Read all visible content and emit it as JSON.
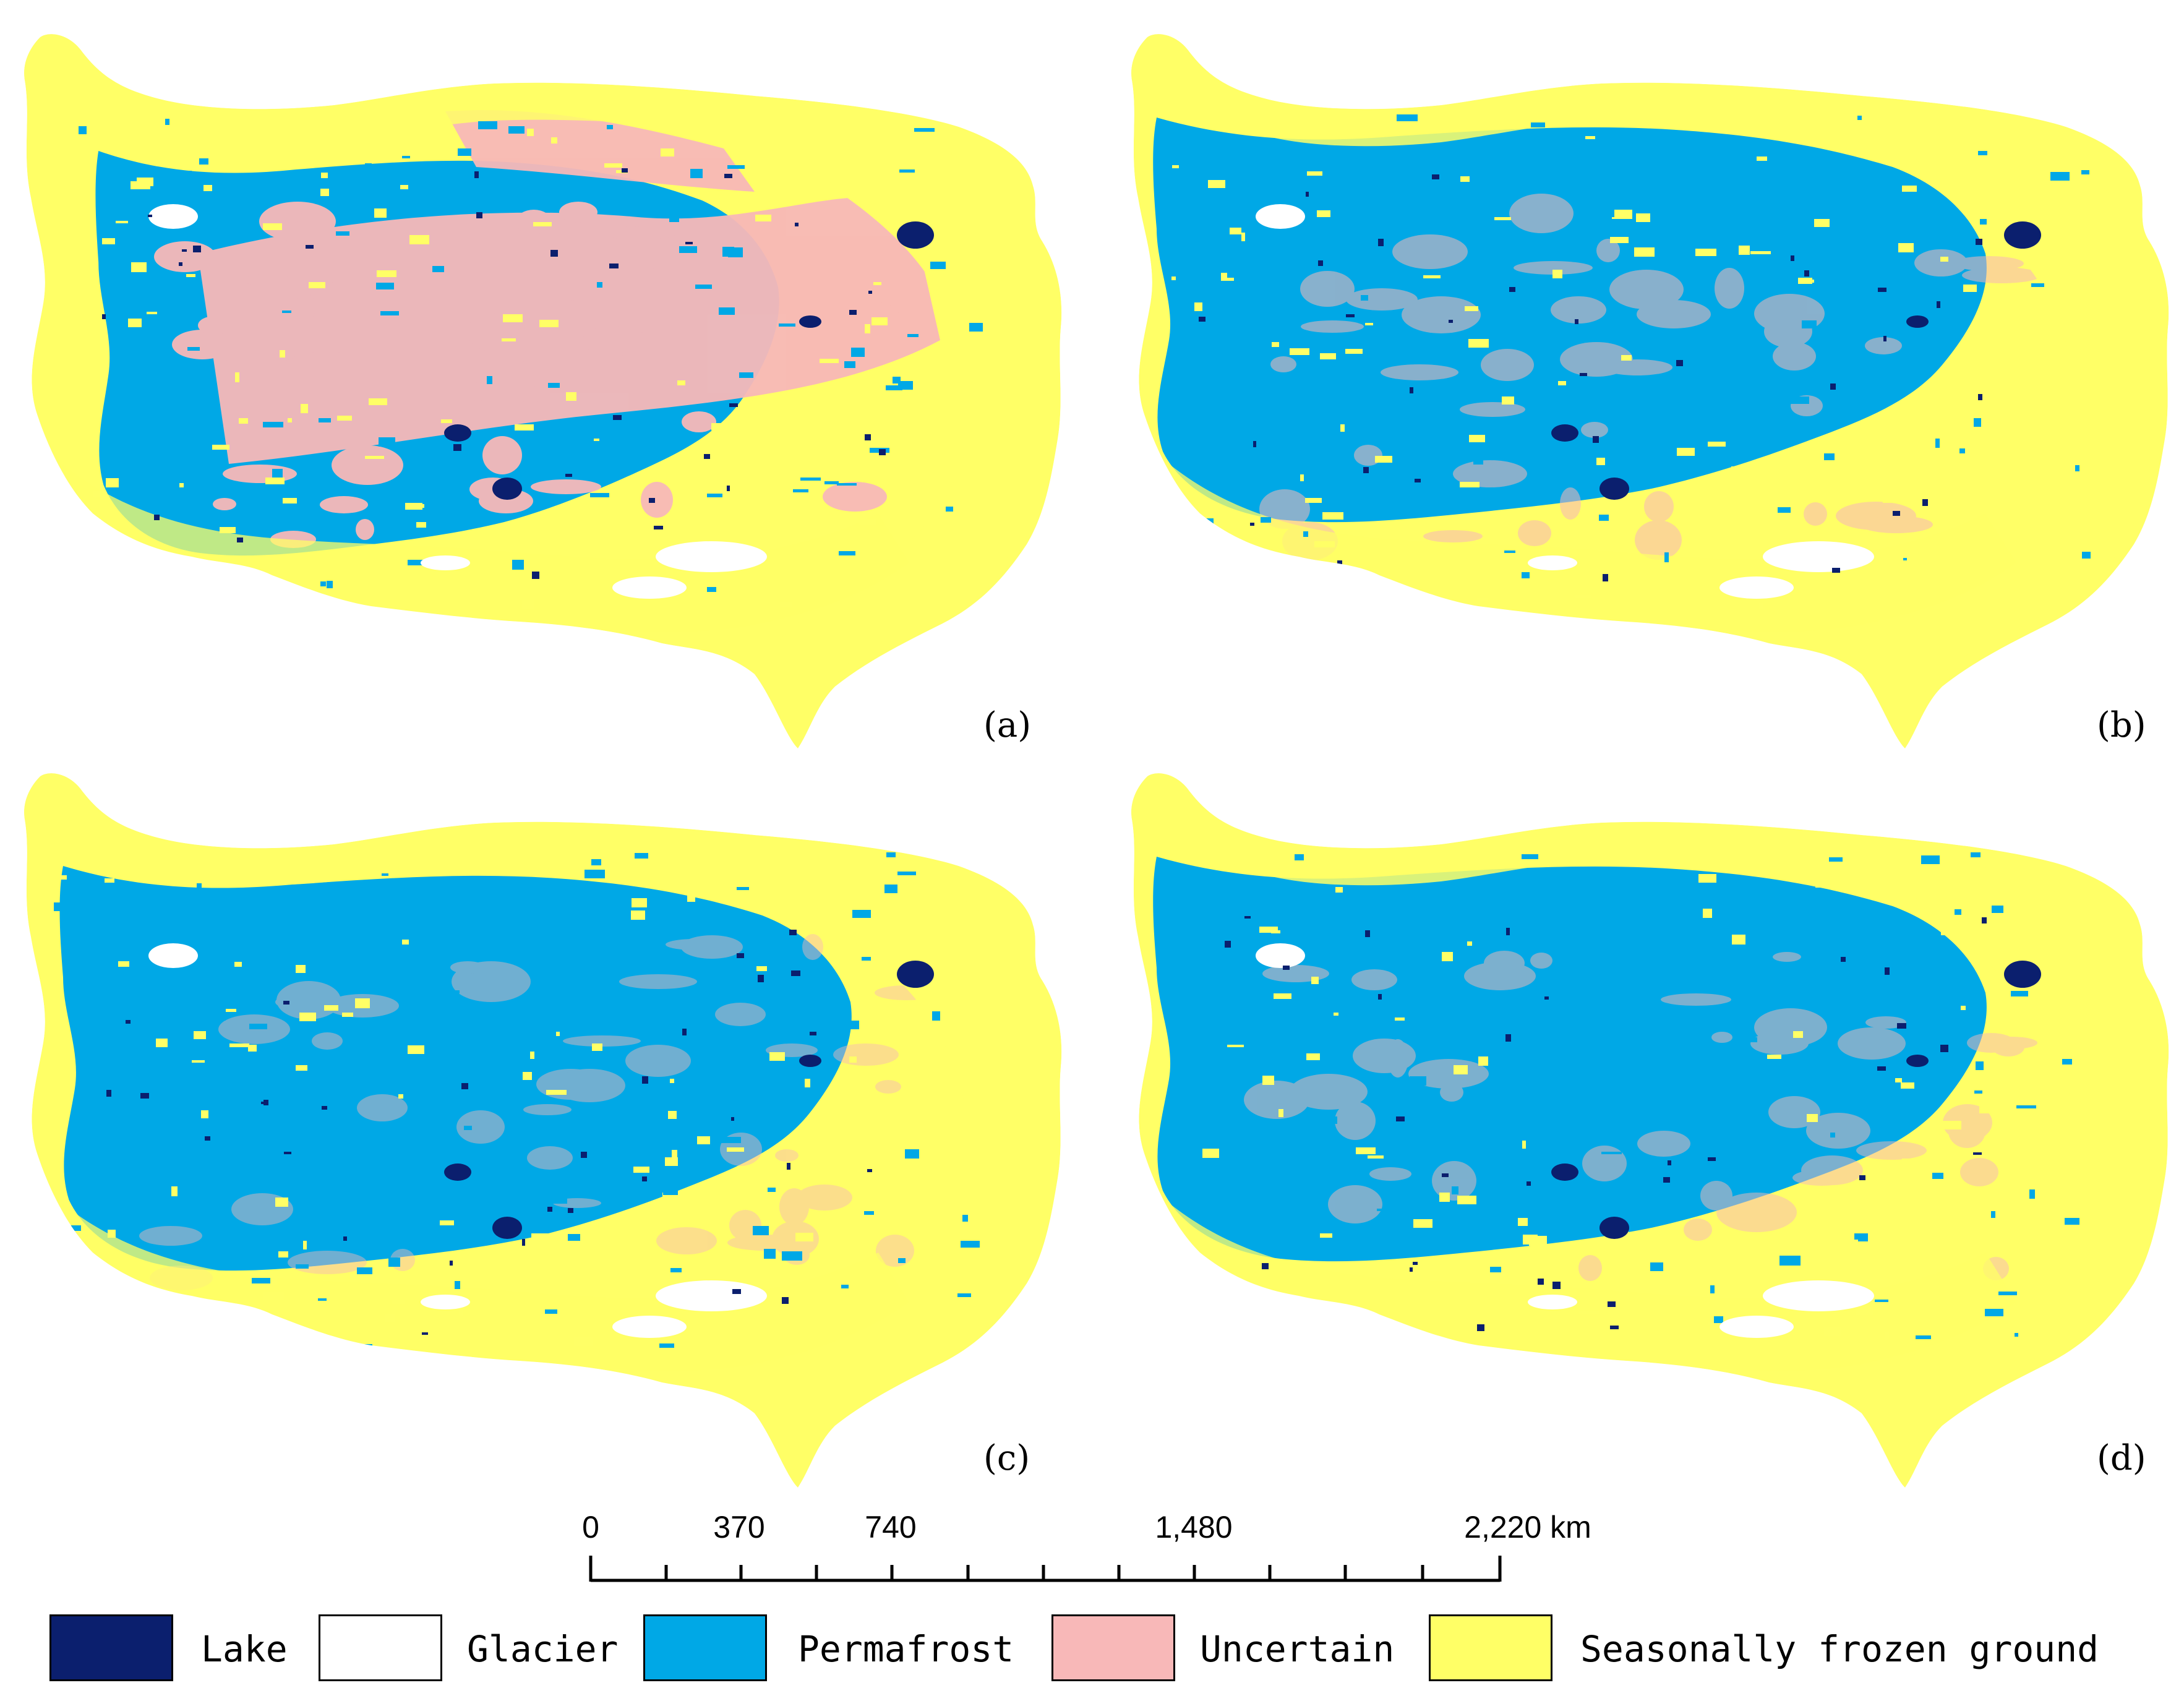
{
  "colors": {
    "lake": "#0b1f6e",
    "glacier": "#ffffff",
    "permafrost": "#00a8e6",
    "uncertain": "#f8b8b8",
    "seasonal": "#ffff66"
  },
  "panels": [
    {
      "label": "(a)"
    },
    {
      "label": "(b)"
    },
    {
      "label": "(c)"
    },
    {
      "label": "(d)"
    }
  ],
  "scale_bar": {
    "ticks": [
      "0",
      "370",
      "740",
      "1,480",
      "2,220 km"
    ]
  },
  "legend": [
    {
      "label": "Lake",
      "color_key": "lake"
    },
    {
      "label": "Glacier",
      "color_key": "glacier"
    },
    {
      "label": "Permafrost",
      "color_key": "permafrost"
    },
    {
      "label": "Uncertain",
      "color_key": "uncertain"
    },
    {
      "label": "Seasonally frozen ground",
      "color_key": "seasonal"
    }
  ]
}
